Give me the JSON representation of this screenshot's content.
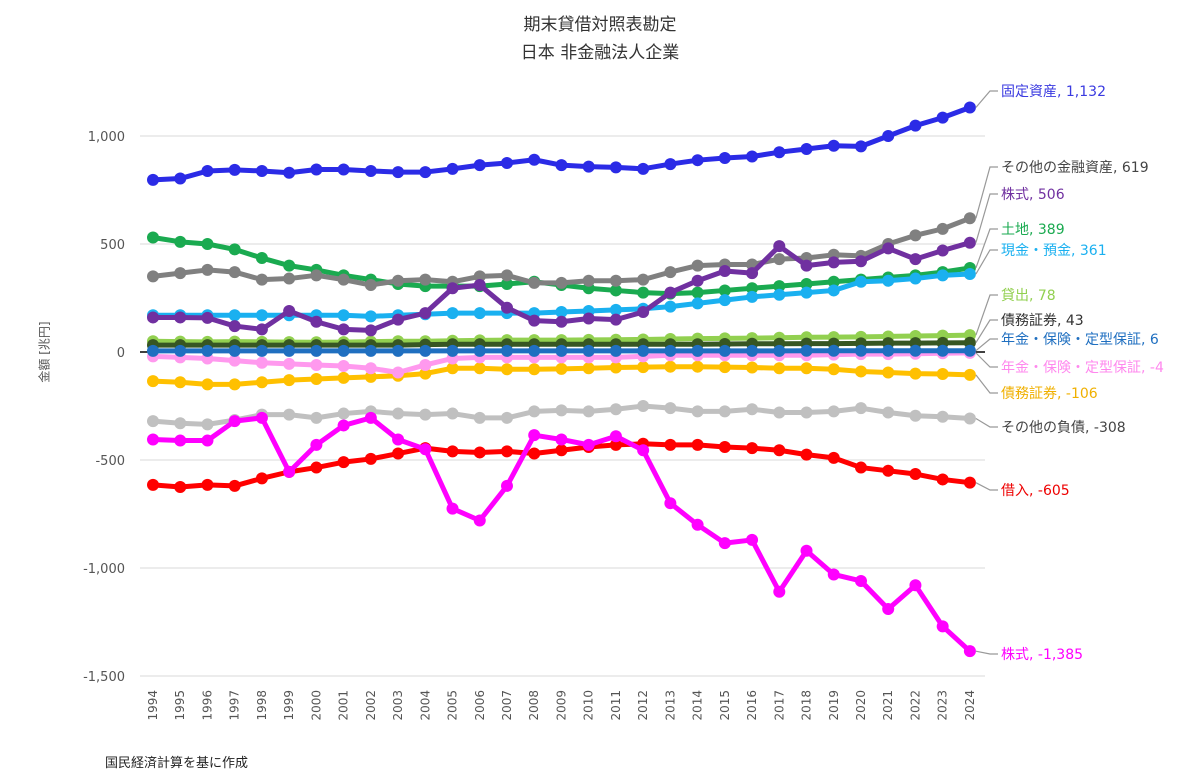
{
  "chart_data": {
    "type": "line",
    "title": "期末貸借対照表勘定",
    "subtitle": "日本 非金融法人企業",
    "ylabel": "金額 [兆円]",
    "xlabel": "",
    "source_note": "国民経済計算を基に作成",
    "ylim": [
      -1500,
      1250
    ],
    "yticks": [
      1000,
      500,
      0,
      -500,
      -1000,
      -1500
    ],
    "ytick_labels": [
      "1,000",
      "500",
      "0",
      "-500",
      "-1,000",
      "-1,500"
    ],
    "grid": true,
    "x": [
      1994,
      1995,
      1996,
      1997,
      1998,
      1999,
      2000,
      2001,
      2002,
      2003,
      2004,
      2005,
      2006,
      2007,
      2008,
      2009,
      2010,
      2011,
      2012,
      2013,
      2014,
      2015,
      2016,
      2017,
      2018,
      2019,
      2020,
      2021,
      2022,
      2023,
      2024
    ],
    "series": [
      {
        "name": "固定資産",
        "end_label": "固定資産, 1,132",
        "color": "#2b2be6",
        "label_color": "#3a3ae0",
        "values": [
          797,
          803,
          838,
          843,
          838,
          830,
          845,
          845,
          838,
          833,
          833,
          848,
          865,
          875,
          890,
          865,
          858,
          855,
          848,
          870,
          888,
          898,
          905,
          925,
          940,
          955,
          952,
          1000,
          1048,
          1085,
          1132
        ]
      },
      {
        "name": "その他の金融資産",
        "end_label": "その他の金融資産, 619",
        "color": "#808080",
        "label_color": "#444444",
        "values": [
          350,
          365,
          380,
          370,
          335,
          340,
          355,
          335,
          310,
          330,
          335,
          325,
          350,
          355,
          320,
          320,
          330,
          330,
          335,
          370,
          400,
          405,
          405,
          430,
          435,
          450,
          445,
          500,
          540,
          570,
          619
        ]
      },
      {
        "name": "株式",
        "end_label": "株式, 506",
        "color": "#7030a0",
        "label_color": "#7030a0",
        "values": [
          160,
          160,
          158,
          120,
          105,
          190,
          140,
          105,
          100,
          150,
          180,
          295,
          310,
          205,
          145,
          140,
          155,
          150,
          185,
          275,
          330,
          375,
          365,
          490,
          400,
          415,
          420,
          480,
          430,
          470,
          506
        ]
      },
      {
        "name": "土地",
        "end_label": "土地, 389",
        "color": "#1aaa50",
        "label_color": "#1aaa50",
        "values": [
          530,
          510,
          500,
          475,
          435,
          400,
          380,
          355,
          335,
          315,
          305,
          305,
          305,
          315,
          325,
          310,
          295,
          285,
          275,
          270,
          275,
          285,
          295,
          305,
          315,
          325,
          335,
          345,
          355,
          370,
          389
        ]
      },
      {
        "name": "現金・預金",
        "end_label": "現金・預金, 361",
        "color": "#1ab0f0",
        "label_color": "#1ab0f0",
        "values": [
          170,
          170,
          170,
          170,
          170,
          170,
          170,
          170,
          165,
          170,
          175,
          180,
          180,
          180,
          180,
          185,
          190,
          195,
          200,
          210,
          225,
          240,
          255,
          265,
          275,
          285,
          325,
          330,
          340,
          355,
          361
        ]
      },
      {
        "name": "貸出",
        "end_label": "貸出, 78",
        "color": "#92d050",
        "label_color": "#92d050",
        "values": [
          50,
          48,
          47,
          48,
          47,
          46,
          45,
          46,
          48,
          50,
          50,
          52,
          54,
          55,
          55,
          55,
          56,
          57,
          58,
          60,
          62,
          63,
          64,
          66,
          68,
          69,
          70,
          72,
          74,
          76,
          78
        ]
      },
      {
        "name": "債務証券",
        "end_label": "債務証券, 43",
        "color": "#375623",
        "label_color": "#333333",
        "values": [
          32,
          32,
          32,
          32,
          32,
          32,
          32,
          32,
          32,
          32,
          34,
          36,
          36,
          36,
          36,
          36,
          36,
          36,
          36,
          36,
          36,
          37,
          38,
          38,
          39,
          39,
          40,
          41,
          41,
          42,
          43
        ]
      },
      {
        "name": "年金・保険・定型保証",
        "end_label": "年金・保険・定型保証, 6",
        "color": "#1f6fc0",
        "label_color": "#1f6fc0",
        "values": [
          5,
          5,
          5,
          5,
          5,
          5,
          5,
          5,
          5,
          5,
          5,
          5,
          5,
          5,
          5,
          5,
          5,
          5,
          5,
          5,
          5,
          5,
          5,
          5,
          6,
          6,
          6,
          6,
          6,
          6,
          6
        ]
      },
      {
        "name": "年金・保険・定型保証",
        "end_label": "年金・保険・定型保証, -4",
        "color": "#ff99ee",
        "label_color": "#ff88ee",
        "values": [
          -20,
          -25,
          -30,
          -40,
          -50,
          -55,
          -60,
          -65,
          -75,
          -95,
          -60,
          -30,
          -25,
          -25,
          -25,
          -25,
          -25,
          -25,
          -20,
          -15,
          -15,
          -15,
          -15,
          -15,
          -15,
          -12,
          -10,
          -10,
          -8,
          -6,
          -4
        ]
      },
      {
        "name": "債務証券",
        "end_label": "債務証券, -106",
        "color": "#ffc000",
        "label_color": "#f0b000",
        "values": [
          -135,
          -140,
          -150,
          -150,
          -140,
          -130,
          -125,
          -120,
          -115,
          -110,
          -100,
          -75,
          -75,
          -80,
          -80,
          -78,
          -75,
          -72,
          -70,
          -68,
          -68,
          -70,
          -72,
          -75,
          -75,
          -80,
          -90,
          -95,
          -100,
          -102,
          -106
        ]
      },
      {
        "name": "その他の負債",
        "end_label": "その他の負債, -308",
        "color": "#c0c0c0",
        "label_color": "#444444",
        "values": [
          -320,
          -330,
          -335,
          -315,
          -290,
          -290,
          -305,
          -285,
          -275,
          -285,
          -290,
          -285,
          -305,
          -305,
          -275,
          -270,
          -275,
          -265,
          -250,
          -260,
          -275,
          -275,
          -265,
          -280,
          -280,
          -275,
          -260,
          -280,
          -295,
          -300,
          -308
        ]
      },
      {
        "name": "借入",
        "end_label": "借入, -605",
        "color": "#ff0000",
        "label_color": "#ee0000",
        "values": [
          -615,
          -625,
          -615,
          -620,
          -585,
          -555,
          -535,
          -510,
          -495,
          -470,
          -445,
          -460,
          -465,
          -460,
          -470,
          -455,
          -440,
          -430,
          -425,
          -430,
          -430,
          -440,
          -445,
          -455,
          -475,
          -490,
          -535,
          -550,
          -565,
          -590,
          -605
        ]
      },
      {
        "name": "株式",
        "end_label": "株式, -1,385",
        "color": "#ff00ff",
        "label_color": "#ff00ff",
        "values": [
          -405,
          -410,
          -410,
          -320,
          -305,
          -555,
          -430,
          -340,
          -305,
          -405,
          -450,
          -725,
          -780,
          -620,
          -385,
          -405,
          -430,
          -390,
          -455,
          -700,
          -800,
          -885,
          -870,
          -1110,
          -920,
          -1030,
          -1060,
          -1190,
          -1080,
          -1270,
          -1385
        ]
      }
    ]
  }
}
